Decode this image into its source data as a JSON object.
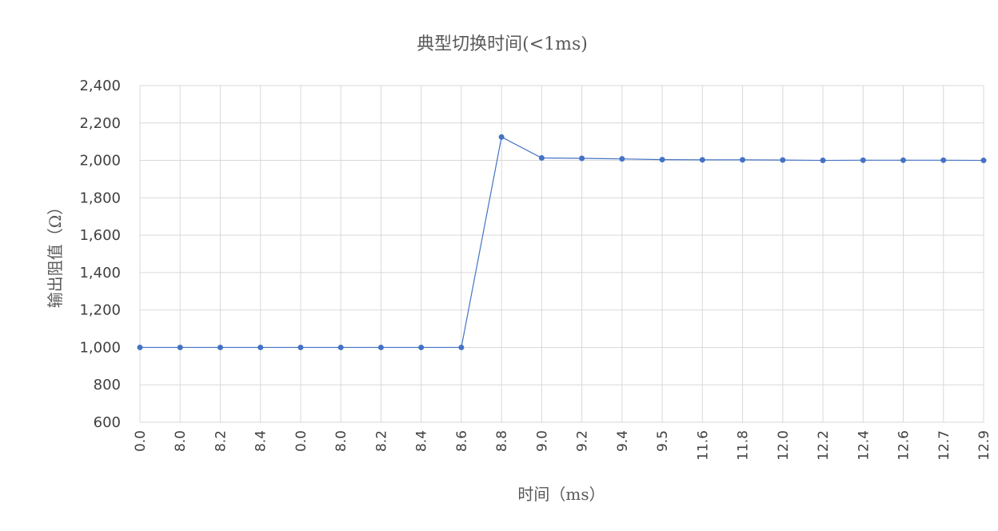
{
  "chart_data": {
    "type": "line",
    "title": "典型切换时间(<1ms)",
    "xlabel": "时间（ms）",
    "ylabel": "输出阻值（Ω）",
    "categories": [
      "0.0",
      "8.0",
      "8.2",
      "8.4",
      "0.0",
      "8.0",
      "8.2",
      "8.4",
      "8.6",
      "8.8",
      "9.0",
      "9.2",
      "9.4",
      "9.5",
      "11.6",
      "11.8",
      "12.0",
      "12.2",
      "12.4",
      "12.6",
      "12.7",
      "12.9"
    ],
    "series": [
      {
        "values": [
          1000,
          1000,
          1000,
          1000,
          1000,
          1000,
          1000,
          1000,
          1000,
          2125,
          2013,
          2011,
          2008,
          2004,
          2003,
          2003,
          2002,
          2000,
          2001,
          2001,
          2001,
          2000
        ]
      }
    ],
    "ylim": [
      600,
      2400
    ],
    "yticks": [
      600,
      800,
      1000,
      1200,
      1400,
      1600,
      1800,
      2000,
      2200,
      2400
    ],
    "ytick_labels": [
      "600",
      "800",
      "1,000",
      "1,200",
      "1,400",
      "1,600",
      "1,800",
      "2,000",
      "2,200",
      "2,400"
    ],
    "grid": true,
    "colors": {
      "series": "#4472c4",
      "grid": "#d9d9d9",
      "text": "#595959"
    }
  }
}
